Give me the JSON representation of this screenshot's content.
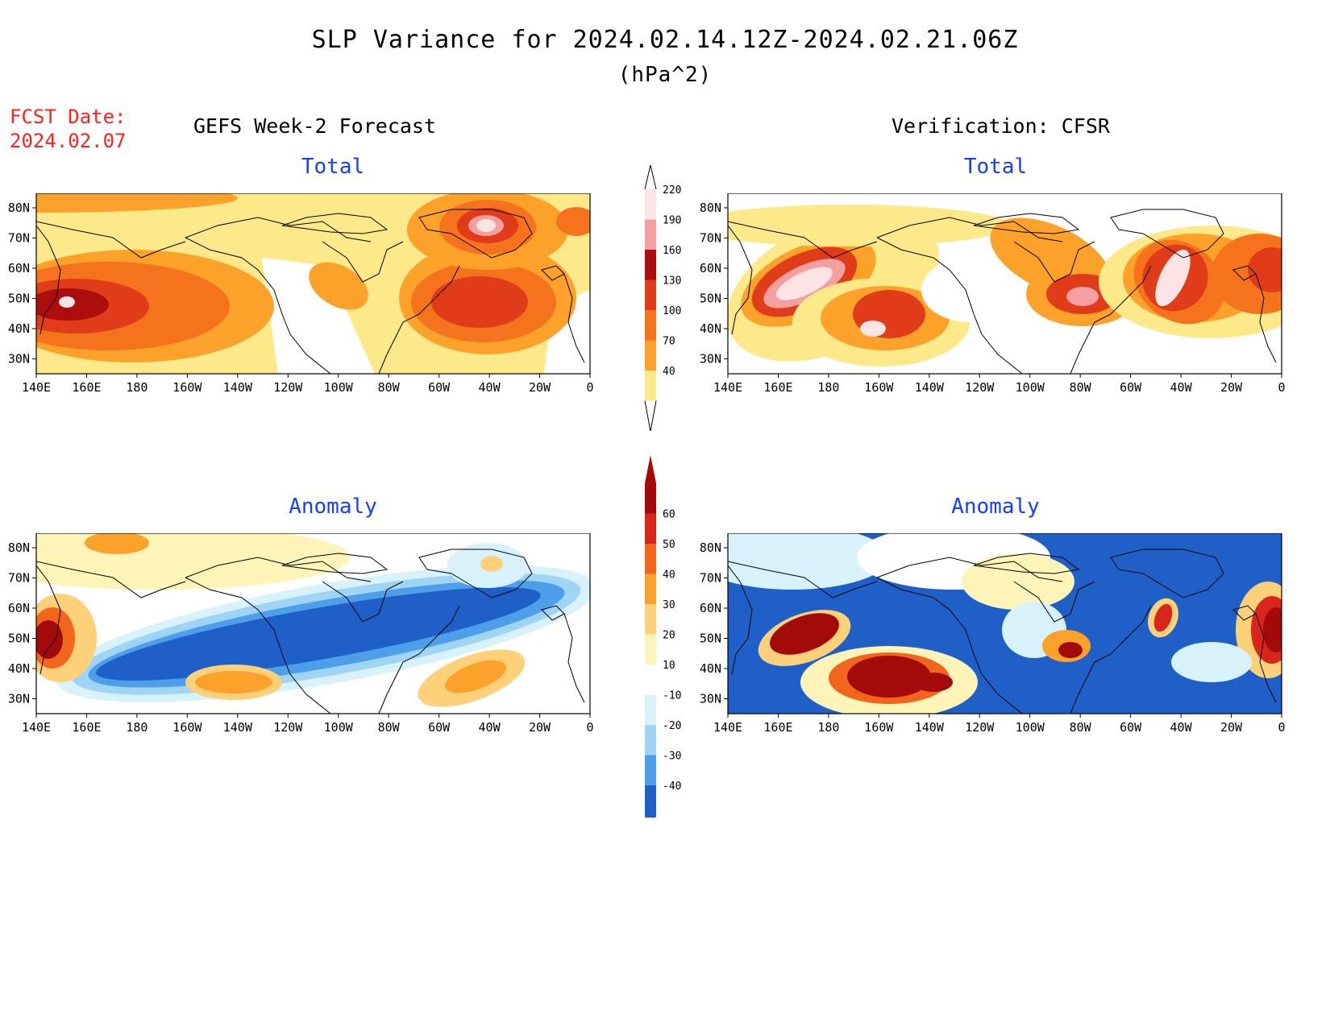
{
  "title": "SLP Variance for 2024.02.14.12Z-2024.02.21.06Z",
  "units": "(hPa^2)",
  "fcst_date": {
    "label": "FCST Date:",
    "value": "2024.02.07"
  },
  "left_header": "GEFS Week-2 Forecast",
  "right_header": "Verification: CFSR",
  "panels": {
    "top_left": "Total",
    "top_right": "Total",
    "bottom_left": "Anomaly",
    "bottom_right": "Anomaly"
  },
  "axes": {
    "lon_ticks": [
      "140E",
      "160E",
      "180",
      "160W",
      "140W",
      "120W",
      "100W",
      "80W",
      "60W",
      "40W",
      "20W",
      "0"
    ],
    "lat_ticks": [
      "80N",
      "70N",
      "60N",
      "50N",
      "40N",
      "30N"
    ]
  },
  "total_colorbar": {
    "levels": [
      "40",
      "70",
      "100",
      "130",
      "160",
      "190",
      "220"
    ],
    "colors": [
      "#fde98a",
      "#fca22b",
      "#f4731c",
      "#e03c1a",
      "#ad0d0d",
      "#f4a0a0",
      "#fde4e4"
    ]
  },
  "anomaly_colorbar": {
    "levels": [
      "60",
      "50",
      "40",
      "30",
      "20",
      "10",
      "-10",
      "-20",
      "-30",
      "-40"
    ],
    "colors": [
      "#a30b0b",
      "#d8261a",
      "#f2651c",
      "#fca22b",
      "#fdd07a",
      "#fef4b8",
      "#ffffff",
      "#d8f2fc",
      "#9fd4f5",
      "#4c9fe8",
      "#1f5fc8"
    ]
  },
  "map_colors": {
    "ocean_base": "#fde98a",
    "anom_base": "#1f5fc8",
    "coast": "#000000"
  }
}
